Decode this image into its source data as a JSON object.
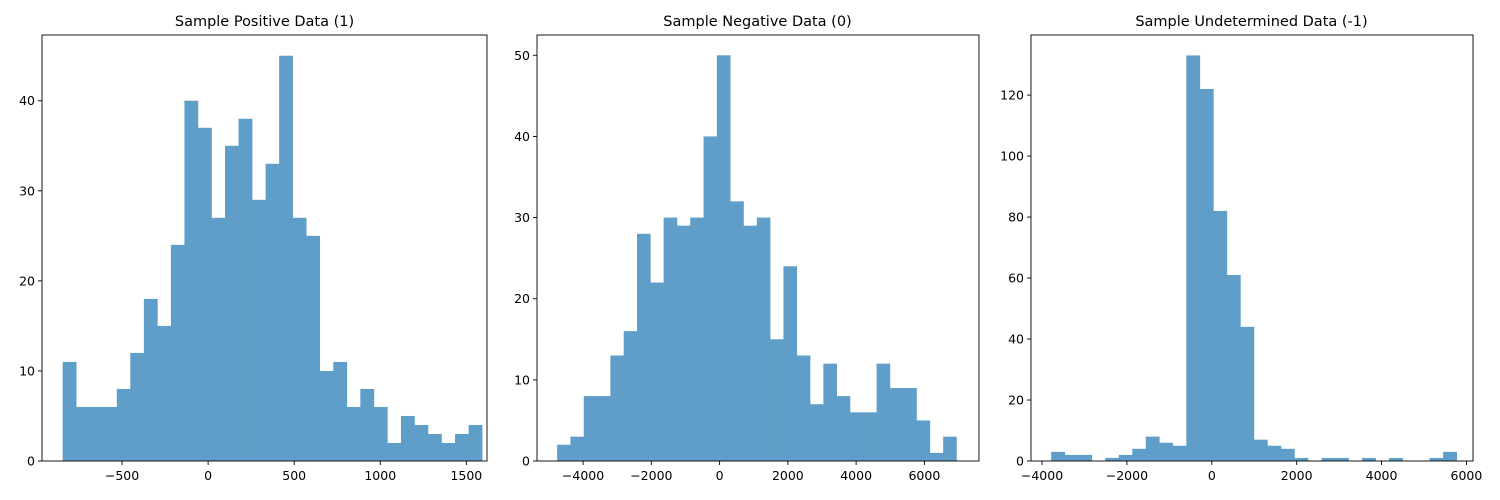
{
  "chart_data": [
    {
      "type": "bar",
      "title": "Sample Positive Data (1)",
      "xlabel": "",
      "ylabel": "",
      "color": "#5f9ec9",
      "bin_start": -845,
      "bin_width": 78.6,
      "counts": [
        11,
        6,
        6,
        6,
        8,
        12,
        18,
        15,
        24,
        40,
        37,
        27,
        35,
        38,
        29,
        33,
        45,
        27,
        25,
        10,
        11,
        6,
        8,
        6,
        2,
        5,
        4,
        3,
        2,
        3,
        4
      ],
      "xlim": [
        -965,
        1620
      ],
      "ylim": [
        0,
        47.3
      ],
      "xticks": [
        -500,
        0,
        500,
        1000,
        1500
      ],
      "xtick_labels": [
        "−500",
        "0",
        "500",
        "1000",
        "1500"
      ],
      "yticks": [
        0,
        10,
        20,
        30,
        40
      ],
      "ytick_labels": [
        "0",
        "10",
        "20",
        "30",
        "40"
      ]
    },
    {
      "type": "bar",
      "title": "Sample Negative Data (0)",
      "xlabel": "",
      "ylabel": "",
      "color": "#5f9ec9",
      "bin_start": -4760,
      "bin_width": 390,
      "counts": [
        2,
        3,
        8,
        8,
        13,
        16,
        28,
        22,
        30,
        29,
        30,
        40,
        50,
        32,
        29,
        30,
        15,
        24,
        13,
        7,
        12,
        8,
        6,
        6,
        12,
        9,
        9,
        5,
        1,
        3
      ],
      "xlim": [
        -5350,
        7600
      ],
      "ylim": [
        0,
        52.5
      ],
      "xticks": [
        -4000,
        -2000,
        0,
        2000,
        4000,
        6000
      ],
      "xtick_labels": [
        "−4000",
        "−2000",
        "0",
        "2000",
        "4000",
        "6000"
      ],
      "yticks": [
        0,
        10,
        20,
        30,
        40,
        50
      ],
      "ytick_labels": [
        "0",
        "10",
        "20",
        "30",
        "40",
        "50"
      ]
    },
    {
      "type": "bar",
      "title": "Sample Undetermined Data (-1)",
      "xlabel": "",
      "ylabel": "",
      "color": "#5f9ec9",
      "bin_start": -3785,
      "bin_width": 318.5,
      "counts": [
        3,
        2,
        2,
        0,
        1,
        2,
        4,
        8,
        6,
        5,
        133,
        122,
        82,
        61,
        44,
        7,
        5,
        4,
        1,
        0,
        1,
        1,
        0,
        1,
        0,
        1,
        0,
        0,
        1,
        3
      ],
      "xlim": [
        -4260,
        6155
      ],
      "ylim": [
        0,
        139.7
      ],
      "xticks": [
        -4000,
        -2000,
        0,
        2000,
        4000,
        6000
      ],
      "xtick_labels": [
        "−4000",
        "−2000",
        "0",
        "2000",
        "4000",
        "6000"
      ],
      "yticks": [
        0,
        20,
        40,
        60,
        80,
        100,
        120
      ],
      "ytick_labels": [
        "0",
        "20",
        "40",
        "60",
        "80",
        "100",
        "120"
      ]
    }
  ]
}
